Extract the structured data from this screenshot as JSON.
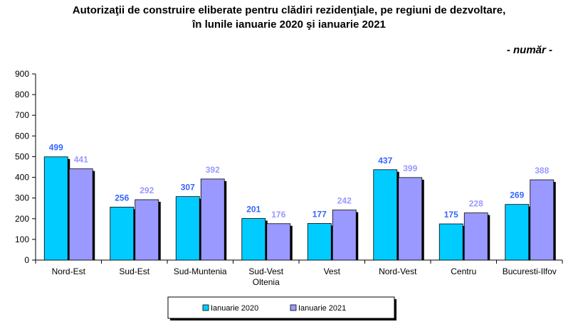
{
  "title_line1": "Autorizaţii de construire eliberate pentru clădiri rezidenţiale, pe regiuni de dezvoltare,",
  "title_line2": "în lunile ianuarie 2020 şi ianuarie 2021",
  "unit_label": "- număr -",
  "chart_data": {
    "type": "bar",
    "categories": [
      [
        "Nord-Est"
      ],
      [
        "Sud-Est"
      ],
      [
        "Sud-Muntenia"
      ],
      [
        "Sud-Vest",
        "Oltenia"
      ],
      [
        "Vest"
      ],
      [
        "Nord-Vest"
      ],
      [
        "Centru"
      ],
      [
        "Bucuresti-Ilfov"
      ]
    ],
    "series": [
      {
        "name": "Ianuarie 2020",
        "values": [
          499,
          256,
          307,
          201,
          177,
          437,
          175,
          269
        ],
        "color": "#00ccff",
        "label_color": "#3366ff"
      },
      {
        "name": "Ianuarie 2021",
        "values": [
          441,
          292,
          392,
          176,
          242,
          399,
          228,
          388
        ],
        "color": "#9999ff",
        "label_color": "#9999ff"
      }
    ],
    "yticks": [
      0,
      100,
      200,
      300,
      400,
      500,
      600,
      700,
      800,
      900
    ],
    "ylim": [
      0,
      900
    ],
    "grid": false,
    "legend_position": "bottom-center"
  }
}
